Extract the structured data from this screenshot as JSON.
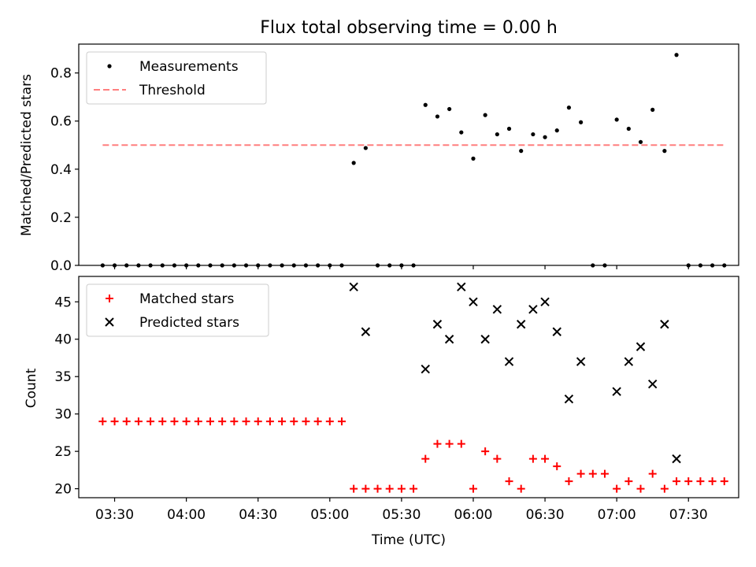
{
  "figure": {
    "title": "Flux total observing time = 0.00 h",
    "xlabel": "Time (UTC)"
  },
  "chart_data": [
    {
      "type": "scatter",
      "panel": "top",
      "ylabel": "Matched/Predicted stars",
      "xlim": [
        "03:15",
        "07:51"
      ],
      "ylim": [
        0,
        0.92
      ],
      "yticks": [
        "0.0",
        "0.2",
        "0.4",
        "0.6",
        "0.8"
      ],
      "ytick_values": [
        0,
        0.2,
        0.4,
        0.6,
        0.8
      ],
      "legend_position": "top-left",
      "legend": [
        {
          "label": "Measurements",
          "marker": "dot",
          "color": "#000000"
        },
        {
          "label": "Threshold",
          "marker": "dashed-line",
          "color": "#ff7f7f"
        }
      ],
      "threshold": {
        "value": 0.5,
        "x_start": "03:25",
        "x_end": "07:45",
        "color": "#ff7f7f"
      },
      "series": [
        {
          "name": "Measurements",
          "color": "#000000",
          "points": [
            [
              "03:25",
              0
            ],
            [
              "03:30",
              0
            ],
            [
              "03:35",
              0
            ],
            [
              "03:40",
              0
            ],
            [
              "03:45",
              0
            ],
            [
              "03:50",
              0
            ],
            [
              "03:55",
              0
            ],
            [
              "04:00",
              0
            ],
            [
              "04:05",
              0
            ],
            [
              "04:10",
              0
            ],
            [
              "04:15",
              0
            ],
            [
              "04:20",
              0
            ],
            [
              "04:25",
              0
            ],
            [
              "04:30",
              0
            ],
            [
              "04:35",
              0
            ],
            [
              "04:40",
              0
            ],
            [
              "04:45",
              0
            ],
            [
              "04:50",
              0
            ],
            [
              "04:55",
              0
            ],
            [
              "05:00",
              0
            ],
            [
              "05:05",
              0
            ],
            [
              "05:10",
              0.426
            ],
            [
              "05:15",
              0.488
            ],
            [
              "05:20",
              0
            ],
            [
              "05:25",
              0
            ],
            [
              "05:30",
              0
            ],
            [
              "05:35",
              0
            ],
            [
              "05:40",
              0.667
            ],
            [
              "05:45",
              0.619
            ],
            [
              "05:50",
              0.65
            ],
            [
              "05:55",
              0.553
            ],
            [
              "06:00",
              0.444
            ],
            [
              "06:05",
              0.625
            ],
            [
              "06:10",
              0.545
            ],
            [
              "06:15",
              0.568
            ],
            [
              "06:20",
              0.476
            ],
            [
              "06:25",
              0.545
            ],
            [
              "06:30",
              0.533
            ],
            [
              "06:35",
              0.561
            ],
            [
              "06:40",
              0.656
            ],
            [
              "06:45",
              0.595
            ],
            [
              "06:50",
              0
            ],
            [
              "06:55",
              0
            ],
            [
              "07:00",
              0.606
            ],
            [
              "07:05",
              0.568
            ],
            [
              "07:10",
              0.513
            ],
            [
              "07:15",
              0.647
            ],
            [
              "07:20",
              0.476
            ],
            [
              "07:25",
              0.875
            ],
            [
              "07:30",
              0
            ],
            [
              "07:35",
              0
            ],
            [
              "07:40",
              0
            ],
            [
              "07:45",
              0
            ]
          ]
        }
      ]
    },
    {
      "type": "scatter",
      "panel": "bottom",
      "ylabel": "Count",
      "xlabel": "Time (UTC)",
      "xlim": [
        "03:15",
        "07:51"
      ],
      "ylim": [
        18.8,
        48.4
      ],
      "yticks": [
        "20",
        "25",
        "30",
        "35",
        "40",
        "45"
      ],
      "ytick_values": [
        20,
        25,
        30,
        35,
        40,
        45
      ],
      "xticks": [
        "03:30",
        "04:00",
        "04:30",
        "05:00",
        "05:30",
        "06:00",
        "06:30",
        "07:00",
        "07:30"
      ],
      "legend_position": "top-left",
      "legend": [
        {
          "label": "Matched stars",
          "marker": "plus",
          "color": "#ff0000"
        },
        {
          "label": "Predicted stars",
          "marker": "x",
          "color": "#000000"
        }
      ],
      "series": [
        {
          "name": "Matched stars",
          "color": "#ff0000",
          "marker": "plus",
          "points": [
            [
              "03:25",
              29
            ],
            [
              "03:30",
              29
            ],
            [
              "03:35",
              29
            ],
            [
              "03:40",
              29
            ],
            [
              "03:45",
              29
            ],
            [
              "03:50",
              29
            ],
            [
              "03:55",
              29
            ],
            [
              "04:00",
              29
            ],
            [
              "04:05",
              29
            ],
            [
              "04:10",
              29
            ],
            [
              "04:15",
              29
            ],
            [
              "04:20",
              29
            ],
            [
              "04:25",
              29
            ],
            [
              "04:30",
              29
            ],
            [
              "04:35",
              29
            ],
            [
              "04:40",
              29
            ],
            [
              "04:45",
              29
            ],
            [
              "04:50",
              29
            ],
            [
              "04:55",
              29
            ],
            [
              "05:00",
              29
            ],
            [
              "05:05",
              29
            ],
            [
              "05:10",
              20
            ],
            [
              "05:15",
              20
            ],
            [
              "05:20",
              20
            ],
            [
              "05:25",
              20
            ],
            [
              "05:30",
              20
            ],
            [
              "05:35",
              20
            ],
            [
              "05:40",
              24
            ],
            [
              "05:45",
              26
            ],
            [
              "05:50",
              26
            ],
            [
              "05:55",
              26
            ],
            [
              "06:00",
              20
            ],
            [
              "06:05",
              25
            ],
            [
              "06:10",
              24
            ],
            [
              "06:15",
              21
            ],
            [
              "06:20",
              20
            ],
            [
              "06:25",
              24
            ],
            [
              "06:30",
              24
            ],
            [
              "06:35",
              23
            ],
            [
              "06:40",
              21
            ],
            [
              "06:45",
              22
            ],
            [
              "06:50",
              22
            ],
            [
              "06:55",
              22
            ],
            [
              "07:00",
              20
            ],
            [
              "07:05",
              21
            ],
            [
              "07:10",
              20
            ],
            [
              "07:15",
              22
            ],
            [
              "07:20",
              20
            ],
            [
              "07:25",
              21
            ],
            [
              "07:30",
              21
            ],
            [
              "07:35",
              21
            ],
            [
              "07:40",
              21
            ],
            [
              "07:45",
              21
            ]
          ]
        },
        {
          "name": "Predicted stars",
          "color": "#000000",
          "marker": "x",
          "points": [
            [
              "05:10",
              47
            ],
            [
              "05:15",
              41
            ],
            [
              "05:40",
              36
            ],
            [
              "05:45",
              42
            ],
            [
              "05:50",
              40
            ],
            [
              "05:55",
              47
            ],
            [
              "06:00",
              45
            ],
            [
              "06:05",
              40
            ],
            [
              "06:10",
              44
            ],
            [
              "06:15",
              37
            ],
            [
              "06:20",
              42
            ],
            [
              "06:25",
              44
            ],
            [
              "06:30",
              45
            ],
            [
              "06:35",
              41
            ],
            [
              "06:40",
              32
            ],
            [
              "06:45",
              37
            ],
            [
              "07:00",
              33
            ],
            [
              "07:05",
              37
            ],
            [
              "07:10",
              39
            ],
            [
              "07:15",
              34
            ],
            [
              "07:20",
              42
            ],
            [
              "07:25",
              24
            ]
          ]
        }
      ]
    }
  ]
}
